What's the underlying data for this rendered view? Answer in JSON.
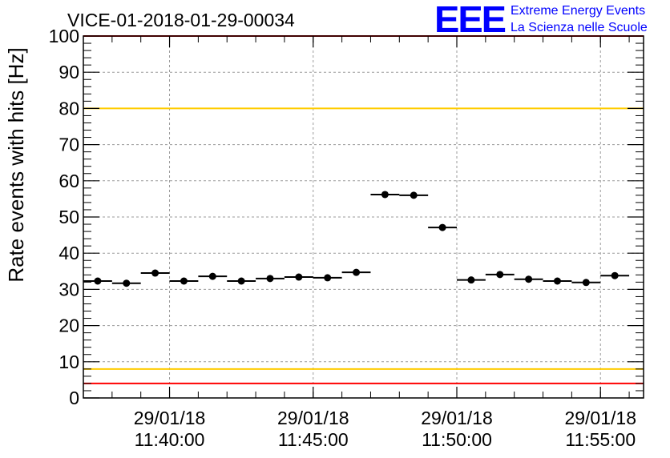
{
  "chart_data": {
    "type": "scatter",
    "title": "VICE-01-2018-01-29-00034",
    "xlabel": "",
    "ylabel": "Rate events with hits [Hz]",
    "ylim": [
      0,
      100
    ],
    "xlim_minutes": [
      "11:37:00",
      "11:56:30"
    ],
    "x_tick_labels": [
      {
        "date": "29/01/18",
        "time": "11:40:00"
      },
      {
        "date": "29/01/18",
        "time": "11:45:00"
      },
      {
        "date": "29/01/18",
        "time": "11:50:00"
      },
      {
        "date": "29/01/18",
        "time": "11:55:00"
      }
    ],
    "y_tick_labels": [
      "0",
      "10",
      "20",
      "30",
      "40",
      "50",
      "60",
      "70",
      "80",
      "90",
      "100"
    ],
    "grid": true,
    "bin_width_seconds": 60,
    "series": [
      {
        "x": [
          "11:37:30",
          "11:38:30",
          "11:39:30",
          "11:40:30",
          "11:41:30",
          "11:42:30",
          "11:43:30",
          "11:44:30",
          "11:45:30",
          "11:46:30",
          "11:47:30",
          "11:48:30",
          "11:49:30",
          "11:50:30",
          "11:51:30",
          "11:52:30",
          "11:53:30",
          "11:54:30",
          "11:55:30",
          "11:56:30"
        ],
        "values": [
          32.3,
          31.7,
          34.5,
          32.3,
          33.6,
          32.3,
          33.0,
          33.4,
          33.2,
          34.7,
          56.2,
          56.0,
          47.1,
          32.6,
          34.1,
          32.8,
          32.3,
          31.9,
          33.8,
          null
        ],
        "color": "#000000"
      }
    ],
    "reference_lines": [
      {
        "y": 4,
        "color": "#ff0000"
      },
      {
        "y": 8,
        "color": "#ffcc00"
      },
      {
        "y": 80,
        "color": "#ffcc00"
      },
      {
        "y": 100,
        "color": "#ff0000"
      }
    ]
  },
  "logo": {
    "mark": "EEE",
    "line1": "Extreme Energy Events",
    "line2": "La Scienza nelle Scuole",
    "color": "#0000ff"
  }
}
